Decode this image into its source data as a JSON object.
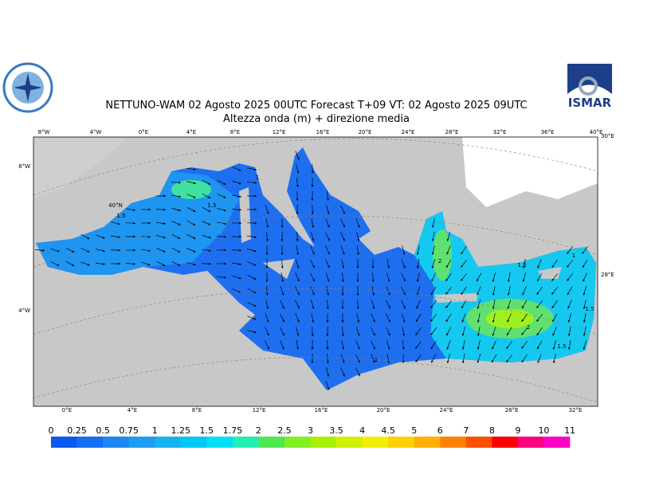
{
  "header": {
    "title": "NETTUNO-WAM  02   Agosto  2025 00UTC Forecast T+09 VT: 02   Agosto  2025 09UTC",
    "subtitle": "Altezza onda (m) + direzione media"
  },
  "logo": {
    "text": "ISMAR"
  },
  "map": {
    "top_labels": [
      "8°W",
      "4°W",
      "0°E",
      "4°E",
      "8°E",
      "12°E",
      "16°E",
      "20°E",
      "24°E",
      "28°E",
      "32°E",
      "36°E",
      "40°E"
    ],
    "bottom_labels": [
      "0°E",
      "4°E",
      "8°E",
      "12°E",
      "16°E",
      "20°E",
      "24°E",
      "28°E",
      "32°E"
    ],
    "left_labels": [
      "8°W",
      "40°N",
      "4°W"
    ],
    "right_labels": [
      "30°E",
      "28°E"
    ],
    "contour_labels": [
      "1.5",
      "1.5",
      "1",
      "2",
      "1.5",
      "1",
      "2",
      "1.5",
      "1",
      "1.5"
    ]
  },
  "colorbar": {
    "labels": [
      "0",
      "0.25",
      "0.5",
      "0.75",
      "1",
      "1.25",
      "1.5",
      "1.75",
      "2",
      "2.5",
      "3",
      "3.5",
      "4",
      "4.5",
      "5",
      "6",
      "7",
      "8",
      "9",
      "10",
      "11"
    ],
    "colors": [
      "#0a5af0",
      "#1470f0",
      "#1e86f0",
      "#1e9cf0",
      "#14b4f0",
      "#00c8f5",
      "#00e0f5",
      "#20f0b4",
      "#50e850",
      "#80f020",
      "#a8f000",
      "#d0f000",
      "#f0f000",
      "#ffd000",
      "#ffb000",
      "#ff8000",
      "#ff5000",
      "#ff0000",
      "#ff0080",
      "#ff00c8"
    ]
  }
}
